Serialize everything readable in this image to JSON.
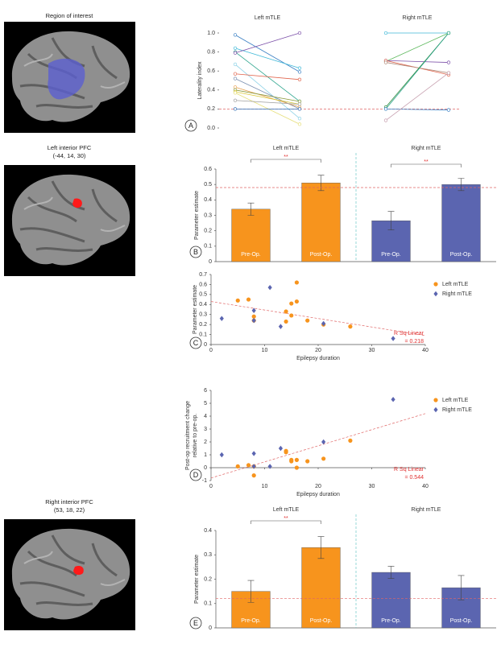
{
  "images": [
    {
      "title": "Region of interest"
    },
    {
      "title": "Left interior PFC",
      "subtitle": "(-44, 14, 30)"
    },
    {
      "title": "Right interior PFC",
      "subtitle": "(53, 18, 22)"
    }
  ],
  "chart_data": [
    {
      "type": "line",
      "panel_label": "A",
      "ylabel": "Laterality index",
      "ylim": [
        0,
        1
      ],
      "yticks": [
        {
          "value": 0,
          "label": "0.0"
        },
        0.2,
        0.4,
        0.6,
        0.8,
        {
          "value": 1,
          "label": "1.0"
        }
      ],
      "reference_line": 0.2,
      "reference_color": "#e06666",
      "groups": [
        {
          "name": "Left mTLE",
          "series": [
            {
              "color": "#3a7fc4",
              "values": [
                0.98,
                0.59
              ]
            },
            {
              "color": "#3fb8d8",
              "values": [
                0.84,
                0.63
              ]
            },
            {
              "color": "#2ca58d",
              "values": [
                0.8,
                0.28
              ]
            },
            {
              "color": "#7b4fa8",
              "values": [
                0.79,
                1.0
              ]
            },
            {
              "color": "#8fd3e8",
              "values": [
                0.67,
                0.1
              ]
            },
            {
              "color": "#7a8fb0",
              "values": [
                0.52,
                0.2
              ]
            },
            {
              "color": "#e0634b",
              "values": [
                0.57,
                0.51
              ]
            },
            {
              "color": "#e8a050",
              "values": [
                0.43,
                0.22
              ]
            },
            {
              "color": "#8a9a3c",
              "values": [
                0.4,
                0.28
              ]
            },
            {
              "color": "#d9c93a",
              "values": [
                0.38,
                0.25
              ]
            },
            {
              "color": "#e6df7a",
              "values": [
                0.37,
                0.04
              ]
            },
            {
              "color": "#a0a0a0",
              "values": [
                0.29,
                0.25
              ]
            },
            {
              "color": "#2f6db5",
              "values": [
                0.2,
                0.2
              ]
            }
          ]
        },
        {
          "name": "Right mTLE",
          "series": [
            {
              "color": "#3fb8d8",
              "values": [
                1.0,
                1.0
              ]
            },
            {
              "color": "#5cb85c",
              "values": [
                0.7,
                1.0
              ]
            },
            {
              "color": "#7b4fa8",
              "values": [
                0.71,
                0.69
              ]
            },
            {
              "color": "#e0634b",
              "values": [
                0.71,
                0.56
              ]
            },
            {
              "color": "#b08a7a",
              "values": [
                0.69,
                0.58
              ]
            },
            {
              "color": "#2e8b3e",
              "values": [
                0.22,
                1.0
              ]
            },
            {
              "color": "#2ca58d",
              "values": [
                0.2,
                1.0
              ]
            },
            {
              "color": "#3a7fc4",
              "values": [
                0.2,
                0.19
              ]
            },
            {
              "color": "#c7a0b0",
              "values": [
                0.08,
                0.58
              ]
            }
          ]
        }
      ]
    },
    {
      "type": "bar",
      "panel_label": "B",
      "ylabel": "Parameter estimate",
      "groups": [
        "Left mTLE",
        "Right mTLE"
      ],
      "categories": [
        "Pre-Op.",
        "Post-Op.",
        "Pre-Op.",
        "Post-Op."
      ],
      "values": [
        0.34,
        0.51,
        0.265,
        0.5
      ],
      "errors": [
        0.04,
        0.05,
        0.06,
        0.04
      ],
      "colors": [
        "#f7941d",
        "#f7941d",
        "#5b65b0",
        "#5b65b0"
      ],
      "ylim": [
        0,
        0.6
      ],
      "yticks": [
        0,
        0.1,
        0.2,
        0.3,
        0.4,
        0.5,
        0.6
      ],
      "reference_line": 0.48,
      "reference_color": "#e06666",
      "annotations": [
        {
          "text": "**",
          "from": 0,
          "to": 1
        },
        {
          "text": "**",
          "from": 2,
          "to": 3
        }
      ]
    },
    {
      "type": "scatter",
      "panel_label": "C",
      "xlabel": "Epilepsy duration",
      "ylabel": "Parameter estimate",
      "xlim": [
        0,
        40
      ],
      "xticks": [
        0,
        10,
        20,
        30,
        40
      ],
      "ylim": [
        0,
        0.7
      ],
      "yticks": [
        0,
        0.1,
        0.2,
        0.3,
        0.4,
        0.5,
        0.6,
        0.7
      ],
      "legend": "right",
      "series": [
        {
          "name": "Left mTLE",
          "color": "#f7941d",
          "marker": "circle",
          "x": [
            5,
            7,
            8,
            8,
            14,
            14,
            15,
            15,
            16,
            16,
            18,
            21,
            26
          ],
          "values": [
            0.44,
            0.45,
            0.28,
            0.24,
            0.33,
            0.23,
            0.41,
            0.29,
            0.62,
            0.43,
            0.24,
            0.2,
            0.18
          ]
        },
        {
          "name": "Right mTLE",
          "color": "#5b65b0",
          "marker": "diamond",
          "x": [
            2,
            8,
            8,
            11,
            13,
            21,
            34
          ],
          "values": [
            0.26,
            0.34,
            0.24,
            0.57,
            0.18,
            0.21,
            0.06
          ]
        }
      ],
      "trendline": {
        "x": [
          0,
          40
        ],
        "y": [
          0.43,
          0.09
        ],
        "color": "#e06666"
      },
      "fit_label": [
        "R Sq Linear",
        "= 0.218"
      ]
    },
    {
      "type": "scatter",
      "panel_label": "D",
      "xlabel": "Epilepsy duration",
      "ylabel": [
        "Post-op recruitment change",
        "relative to pre-op."
      ],
      "xlim": [
        0,
        40
      ],
      "xticks": [
        0,
        10,
        20,
        30,
        40
      ],
      "ylim": [
        -1,
        6
      ],
      "yticks": [
        -1,
        0,
        1,
        2,
        3,
        4,
        5,
        6
      ],
      "legend": "right",
      "series": [
        {
          "name": "Left mTLE",
          "color": "#f7941d",
          "marker": "circle",
          "x": [
            5,
            7,
            8,
            8,
            14,
            14,
            15,
            15,
            16,
            16,
            18,
            21,
            26
          ],
          "values": [
            0.1,
            0.2,
            -0.6,
            0.1,
            1.3,
            1.2,
            0.6,
            0.5,
            0.0,
            0.6,
            0.5,
            0.7,
            2.1
          ]
        },
        {
          "name": "Right mTLE",
          "color": "#5b65b0",
          "marker": "diamond",
          "x": [
            2,
            8,
            8,
            11,
            13,
            21,
            34
          ],
          "values": [
            1.0,
            1.1,
            0.1,
            0.1,
            1.5,
            2.0,
            5.3
          ]
        }
      ],
      "trendline": {
        "x": [
          0,
          40
        ],
        "y": [
          -0.8,
          4.2
        ],
        "color": "#e06666"
      },
      "fit_label": [
        "R Sq Linear",
        "= 0.544"
      ]
    },
    {
      "type": "bar",
      "panel_label": "E",
      "ylabel": "Parameter estimate",
      "groups": [
        "Left mTLE",
        "Right mTLE"
      ],
      "categories": [
        "Pre-Op.",
        "Post-Op.",
        "Pre-Op.",
        "Post-Op."
      ],
      "values": [
        0.15,
        0.33,
        0.228,
        0.165
      ],
      "errors": [
        0.045,
        0.045,
        0.025,
        0.05
      ],
      "colors": [
        "#f7941d",
        "#f7941d",
        "#5b65b0",
        "#5b65b0"
      ],
      "ylim": [
        0,
        0.4
      ],
      "yticks": [
        0,
        0.1,
        0.2,
        0.3,
        0.4
      ],
      "reference_line": 0.12,
      "reference_color": "#e06666",
      "annotations": [
        {
          "text": "**",
          "from": 0,
          "to": 1
        }
      ]
    }
  ]
}
